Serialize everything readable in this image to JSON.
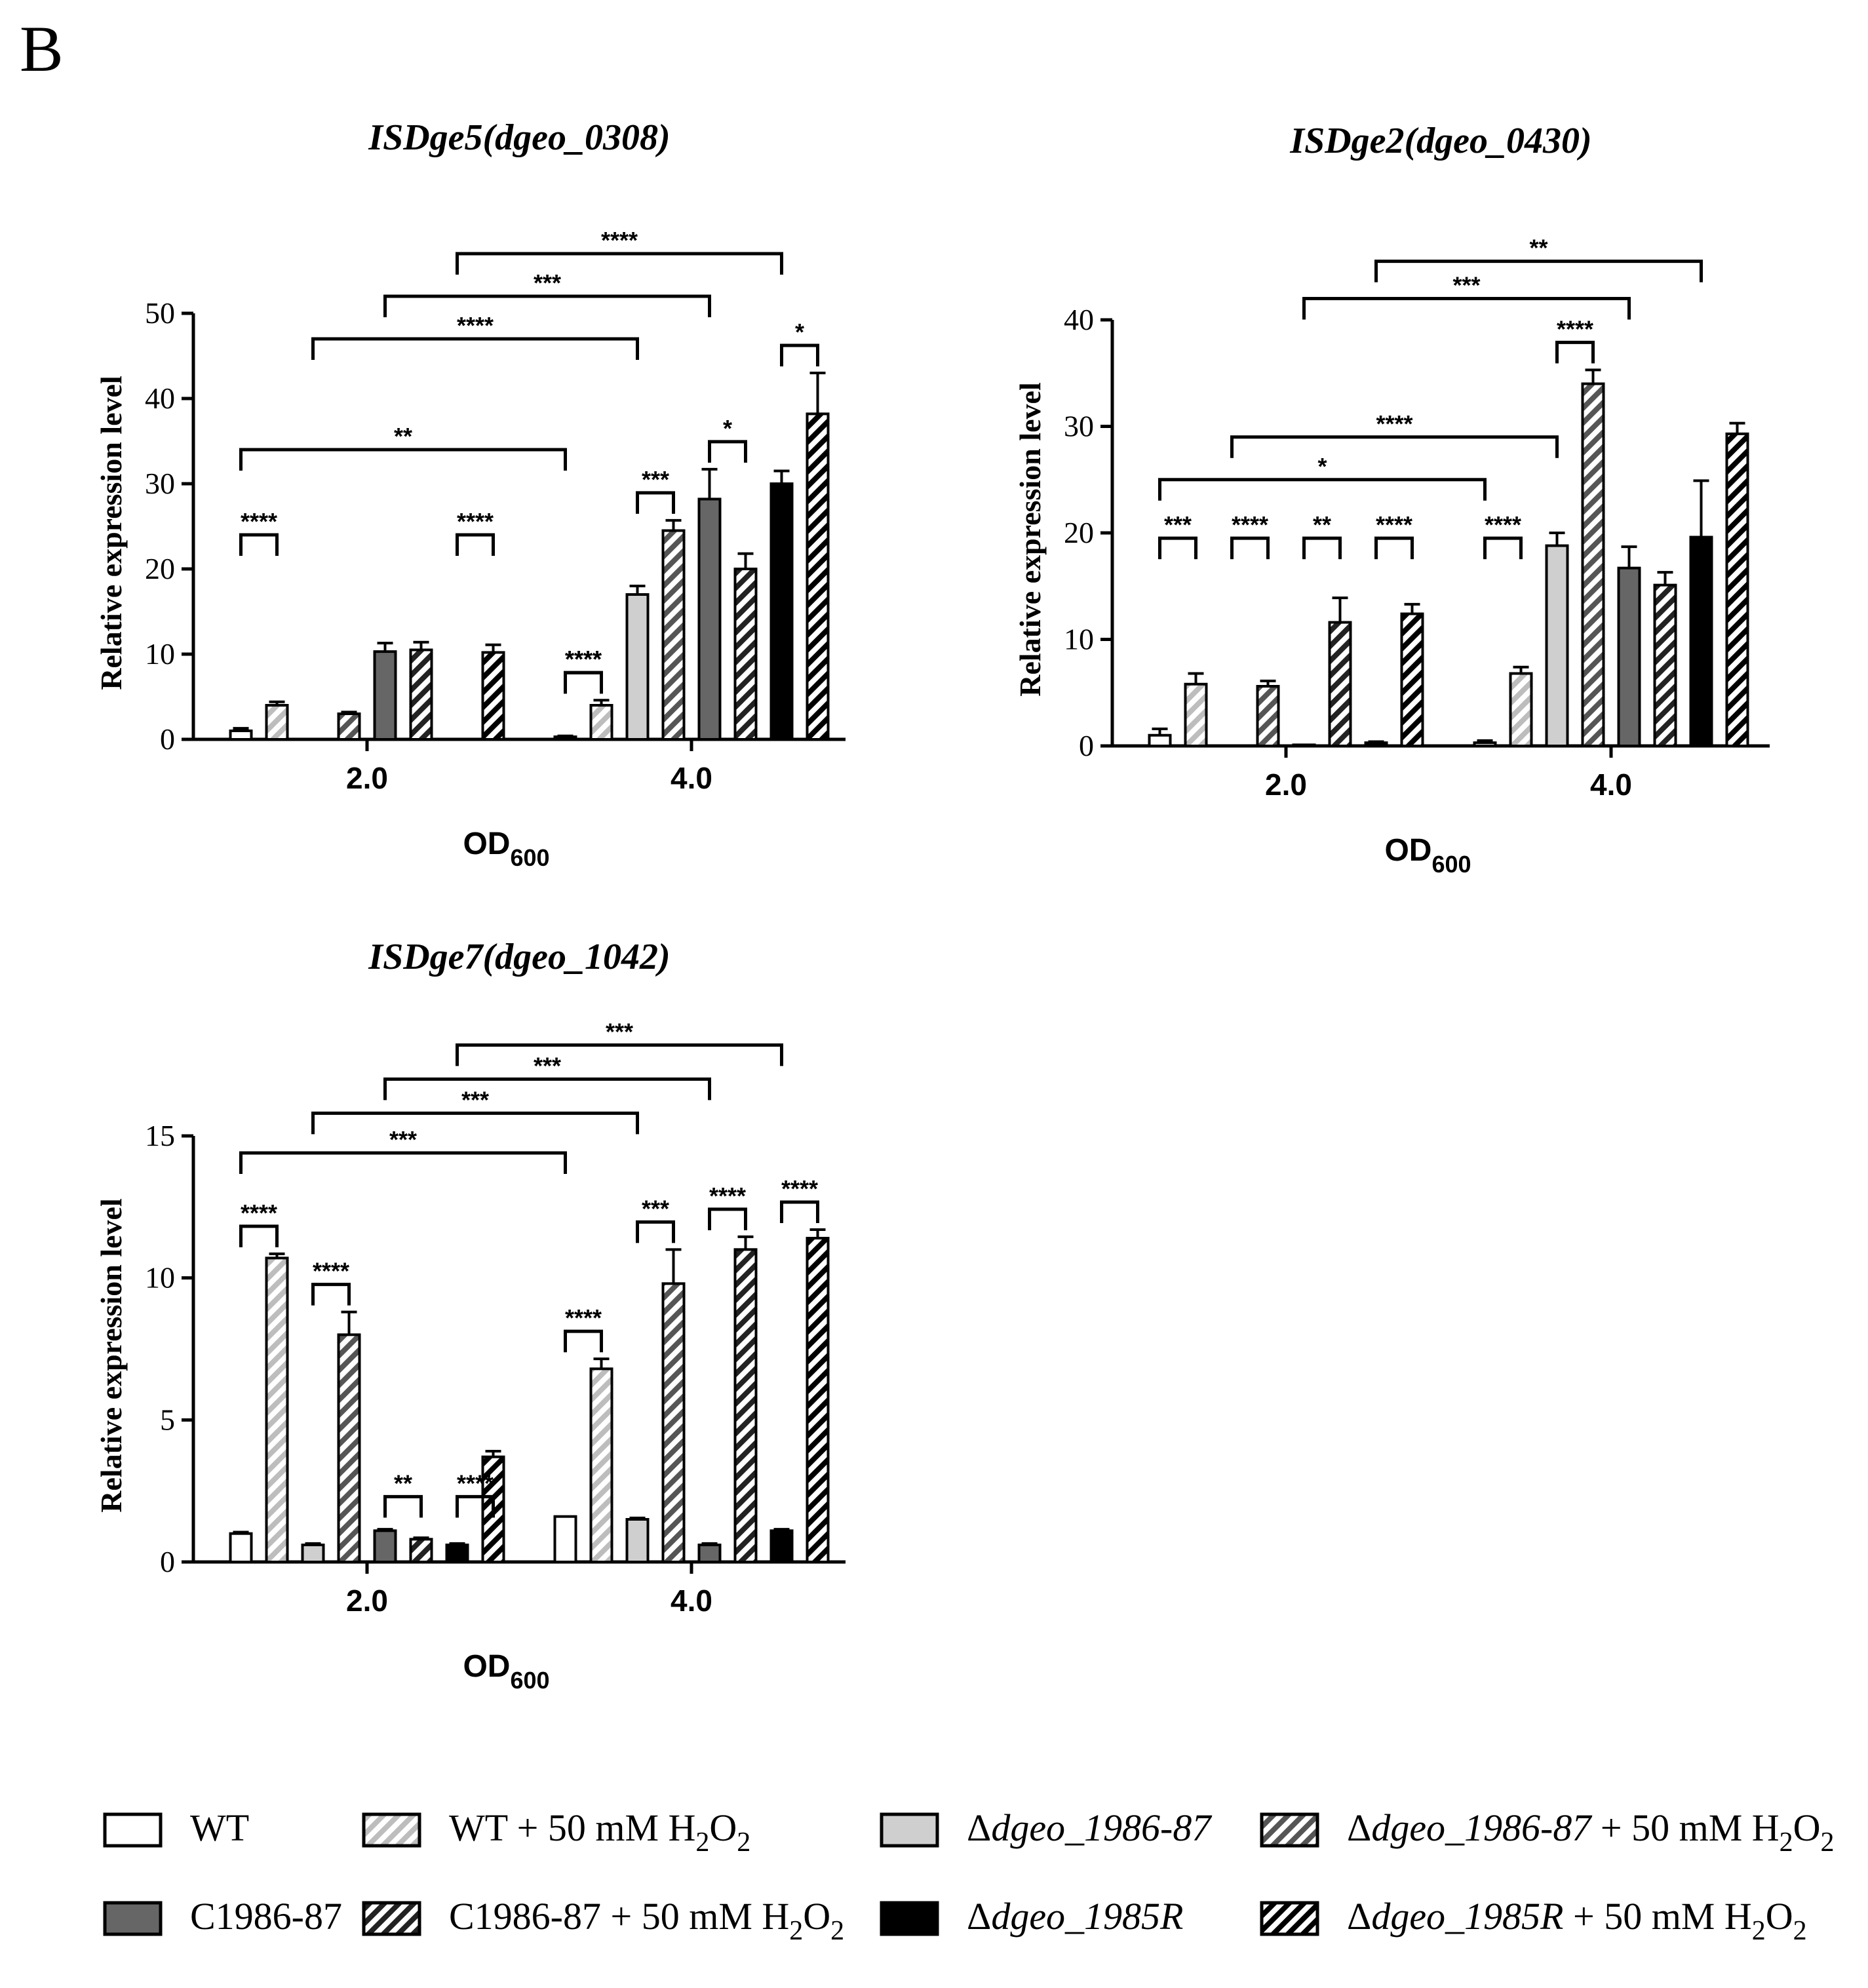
{
  "panel_label": "B",
  "groups": [
    "2.0",
    "4.0"
  ],
  "group_label_prefix": "",
  "series": [
    {
      "name": "WT",
      "fill": "#ffffff",
      "hatch": false,
      "hatch_color": ""
    },
    {
      "name": "WT + 50 mM H2O2",
      "fill": "#ffffff",
      "hatch": true,
      "hatch_color": "#bdbdbd"
    },
    {
      "name": "Δdgeo_1986-87",
      "fill": "#cfcfcf",
      "hatch": false,
      "hatch_color": ""
    },
    {
      "name": "Δdgeo_1986-87 + 50 mM H2O2",
      "fill": "#ffffff",
      "hatch": true,
      "hatch_color": "#555555"
    },
    {
      "name": "C1986-87",
      "fill": "#666666",
      "hatch": false,
      "hatch_color": ""
    },
    {
      "name": "C1986-87 + 50 mM H2O2",
      "fill": "#666666",
      "hatch": true,
      "hatch_color": "#222222"
    },
    {
      "name": "Δdgeo_1985R",
      "fill": "#000000",
      "hatch": false,
      "hatch_color": ""
    },
    {
      "name": "Δdgeo_1985R + 50 mM H2O2",
      "fill": "#ffffff",
      "hatch": true,
      "hatch_color": "#000000"
    }
  ],
  "legend": [
    {
      "pre": "WT",
      "italic": "",
      "post": "",
      "sub": "",
      "tail": ""
    },
    {
      "pre": "WT + 50 mM H",
      "italic": "",
      "post": "",
      "sub": "2",
      "tail": "O2"
    },
    {
      "pre": "Δ",
      "italic": "dgeo_1986-87",
      "post": "",
      "sub": "",
      "tail": ""
    },
    {
      "pre": "Δ",
      "italic": "dgeo_1986-87",
      "post": " + 50 mM H",
      "sub": "2",
      "tail": "O2"
    },
    {
      "pre": "C1986-87",
      "italic": "",
      "post": "",
      "sub": "",
      "tail": ""
    },
    {
      "pre": "C1986-87 + 50 mM H",
      "italic": "",
      "post": "",
      "sub": "2",
      "tail": "O2"
    },
    {
      "pre": "Δ",
      "italic": "dgeo_1985R",
      "post": "",
      "sub": "",
      "tail": ""
    },
    {
      "pre": "Δ",
      "italic": "dgeo_1985R",
      "post": " + 50 mM H",
      "sub": "2",
      "tail": "O2"
    }
  ],
  "chart_data": [
    {
      "type": "bar",
      "title": "ISDge5(dgeo_0308)",
      "xlabel": "OD",
      "xlabel_sub": "600",
      "ylabel": "Relative expression level",
      "ylim": [
        0,
        50
      ],
      "yticks": [
        0,
        10,
        20,
        30,
        40,
        50
      ],
      "categories": [
        "2.0",
        "4.0"
      ],
      "series_values": [
        [
          1.0,
          0.3
        ],
        [
          4.0,
          4.0
        ],
        [
          0,
          17.0
        ],
        [
          3.0,
          24.5
        ],
        [
          10.3,
          28.2
        ],
        [
          10.5,
          20.0
        ],
        [
          0,
          30.0
        ],
        [
          10.2,
          38.2
        ]
      ],
      "series_errors": [
        [
          0.3,
          0.1
        ],
        [
          0.4,
          0.6
        ],
        [
          0,
          1.0
        ],
        [
          0.2,
          1.2
        ],
        [
          1.0,
          3.5
        ],
        [
          0.9,
          1.8
        ],
        [
          0,
          1.5
        ],
        [
          0.9,
          4.8
        ]
      ],
      "brackets": [
        {
          "a": [
            0,
            0
          ],
          "b": [
            1,
            0
          ],
          "label": "****",
          "tier": 0
        },
        {
          "a": [
            0,
            1
          ],
          "b": [
            1,
            1
          ],
          "label": "****",
          "tier": 0
        },
        {
          "a": [
            6,
            0
          ],
          "b": [
            7,
            0
          ],
          "label": "****",
          "tier": 0
        },
        {
          "a": [
            0,
            1
          ],
          "b": [
            1,
            1
          ],
          "label": "****",
          "tier": 0,
          "group": 1
        },
        {
          "a": [
            2,
            1
          ],
          "b": [
            3,
            1
          ],
          "label": "***",
          "tier": 0,
          "group": 1
        },
        {
          "a": [
            4,
            1
          ],
          "b": [
            5,
            1
          ],
          "label": "*",
          "tier": 0,
          "group": 1
        },
        {
          "a": [
            6,
            1
          ],
          "b": [
            7,
            1
          ],
          "label": "*",
          "tier": 0,
          "group": 1
        },
        {
          "a": [
            0,
            0
          ],
          "b": [
            0,
            1
          ],
          "label": "**",
          "tier": 1
        },
        {
          "a": [
            2,
            0
          ],
          "b": [
            2,
            1
          ],
          "label": "****",
          "tier": 2
        },
        {
          "a": [
            4,
            0
          ],
          "b": [
            4,
            1
          ],
          "label": "***",
          "tier": 3
        },
        {
          "a": [
            6,
            0
          ],
          "b": [
            6,
            1
          ],
          "label": "****",
          "tier": 4
        }
      ]
    },
    {
      "type": "bar",
      "title": "ISDge2(dgeo_0430)",
      "xlabel": "OD",
      "xlabel_sub": "600",
      "ylabel": "Relative expression level",
      "ylim": [
        0,
        40
      ],
      "yticks": [
        0,
        10,
        20,
        30,
        40
      ],
      "categories": [
        "2.0",
        "4.0"
      ],
      "series_values": [
        [
          1.0,
          0.3
        ],
        [
          5.8,
          6.8
        ],
        [
          0,
          18.8
        ],
        [
          5.6,
          34.0
        ],
        [
          0.1,
          16.7
        ],
        [
          11.6,
          15.1
        ],
        [
          0.3,
          19.6
        ],
        [
          12.4,
          29.3
        ]
      ],
      "series_errors": [
        [
          0.6,
          0.2
        ],
        [
          1.0,
          0.6
        ],
        [
          0,
          1.2
        ],
        [
          0.5,
          1.3
        ],
        [
          0,
          2.0
        ],
        [
          2.3,
          1.2
        ],
        [
          0.1,
          5.3
        ],
        [
          0.9,
          1.0
        ]
      ],
      "brackets": [
        {
          "a": [
            0,
            0
          ],
          "b": [
            1,
            0
          ],
          "label": "***",
          "tier": 0
        },
        {
          "a": [
            2,
            0
          ],
          "b": [
            3,
            0
          ],
          "label": "****",
          "tier": 0
        },
        {
          "a": [
            4,
            0
          ],
          "b": [
            5,
            0
          ],
          "label": "**",
          "tier": 0
        },
        {
          "a": [
            6,
            0
          ],
          "b": [
            7,
            0
          ],
          "label": "****",
          "tier": 0
        },
        {
          "a": [
            0,
            1
          ],
          "b": [
            1,
            1
          ],
          "label": "****",
          "tier": 0
        },
        {
          "a": [
            2,
            1
          ],
          "b": [
            3,
            1
          ],
          "label": "****",
          "tier": 0,
          "group": 1
        },
        {
          "a": [
            0,
            0
          ],
          "b": [
            0,
            1
          ],
          "label": "*",
          "tier": 1
        },
        {
          "a": [
            2,
            0
          ],
          "b": [
            2,
            1
          ],
          "label": "****",
          "tier": 2
        },
        {
          "a": [
            4,
            0
          ],
          "b": [
            4,
            1
          ],
          "label": "***",
          "tier": 3
        },
        {
          "a": [
            6,
            0
          ],
          "b": [
            6,
            1
          ],
          "label": "**",
          "tier": 4
        }
      ]
    },
    {
      "type": "bar",
      "title": "ISDge7(dgeo_1042)",
      "xlabel": "OD",
      "xlabel_sub": "600",
      "ylabel": "Relative expression level",
      "ylim": [
        0,
        15
      ],
      "yticks": [
        0,
        5,
        10,
        15
      ],
      "categories": [
        "2.0",
        "4.0"
      ],
      "series_values": [
        [
          1.0,
          1.6
        ],
        [
          10.7,
          6.8
        ],
        [
          0.6,
          1.5
        ],
        [
          8.0,
          9.8
        ],
        [
          1.1,
          0.6
        ],
        [
          0.8,
          11.0
        ],
        [
          0.6,
          1.1
        ],
        [
          3.7,
          11.4
        ]
      ],
      "series_errors": [
        [
          0.05,
          0
        ],
        [
          0.15,
          0.35
        ],
        [
          0.05,
          0.05
        ],
        [
          0.8,
          1.2
        ],
        [
          0.05,
          0.05
        ],
        [
          0.05,
          0.45
        ],
        [
          0.05,
          0.05
        ],
        [
          0.2,
          0.3
        ]
      ],
      "brackets": [
        {
          "a": [
            0,
            0
          ],
          "b": [
            1,
            0
          ],
          "label": "****",
          "tier": 0
        },
        {
          "a": [
            2,
            0
          ],
          "b": [
            3,
            0
          ],
          "label": "****",
          "tier": 0
        },
        {
          "a": [
            4,
            0
          ],
          "b": [
            5,
            0
          ],
          "label": "**",
          "tier": 0
        },
        {
          "a": [
            6,
            0
          ],
          "b": [
            7,
            0
          ],
          "label": "****",
          "tier": 0
        },
        {
          "a": [
            0,
            1
          ],
          "b": [
            1,
            1
          ],
          "label": "****",
          "tier": 0
        },
        {
          "a": [
            2,
            1
          ],
          "b": [
            3,
            1
          ],
          "label": "***",
          "tier": 0
        },
        {
          "a": [
            4,
            1
          ],
          "b": [
            5,
            1
          ],
          "label": "****",
          "tier": 0
        },
        {
          "a": [
            6,
            1
          ],
          "b": [
            7,
            1
          ],
          "label": "****",
          "tier": 0
        },
        {
          "a": [
            0,
            0
          ],
          "b": [
            0,
            1
          ],
          "label": "***",
          "tier": 1
        },
        {
          "a": [
            2,
            0
          ],
          "b": [
            2,
            1
          ],
          "label": "***",
          "tier": 2
        },
        {
          "a": [
            4,
            0
          ],
          "b": [
            4,
            1
          ],
          "label": "***",
          "tier": 3
        },
        {
          "a": [
            6,
            0
          ],
          "b": [
            6,
            1
          ],
          "label": "***",
          "tier": 4
        }
      ]
    }
  ]
}
